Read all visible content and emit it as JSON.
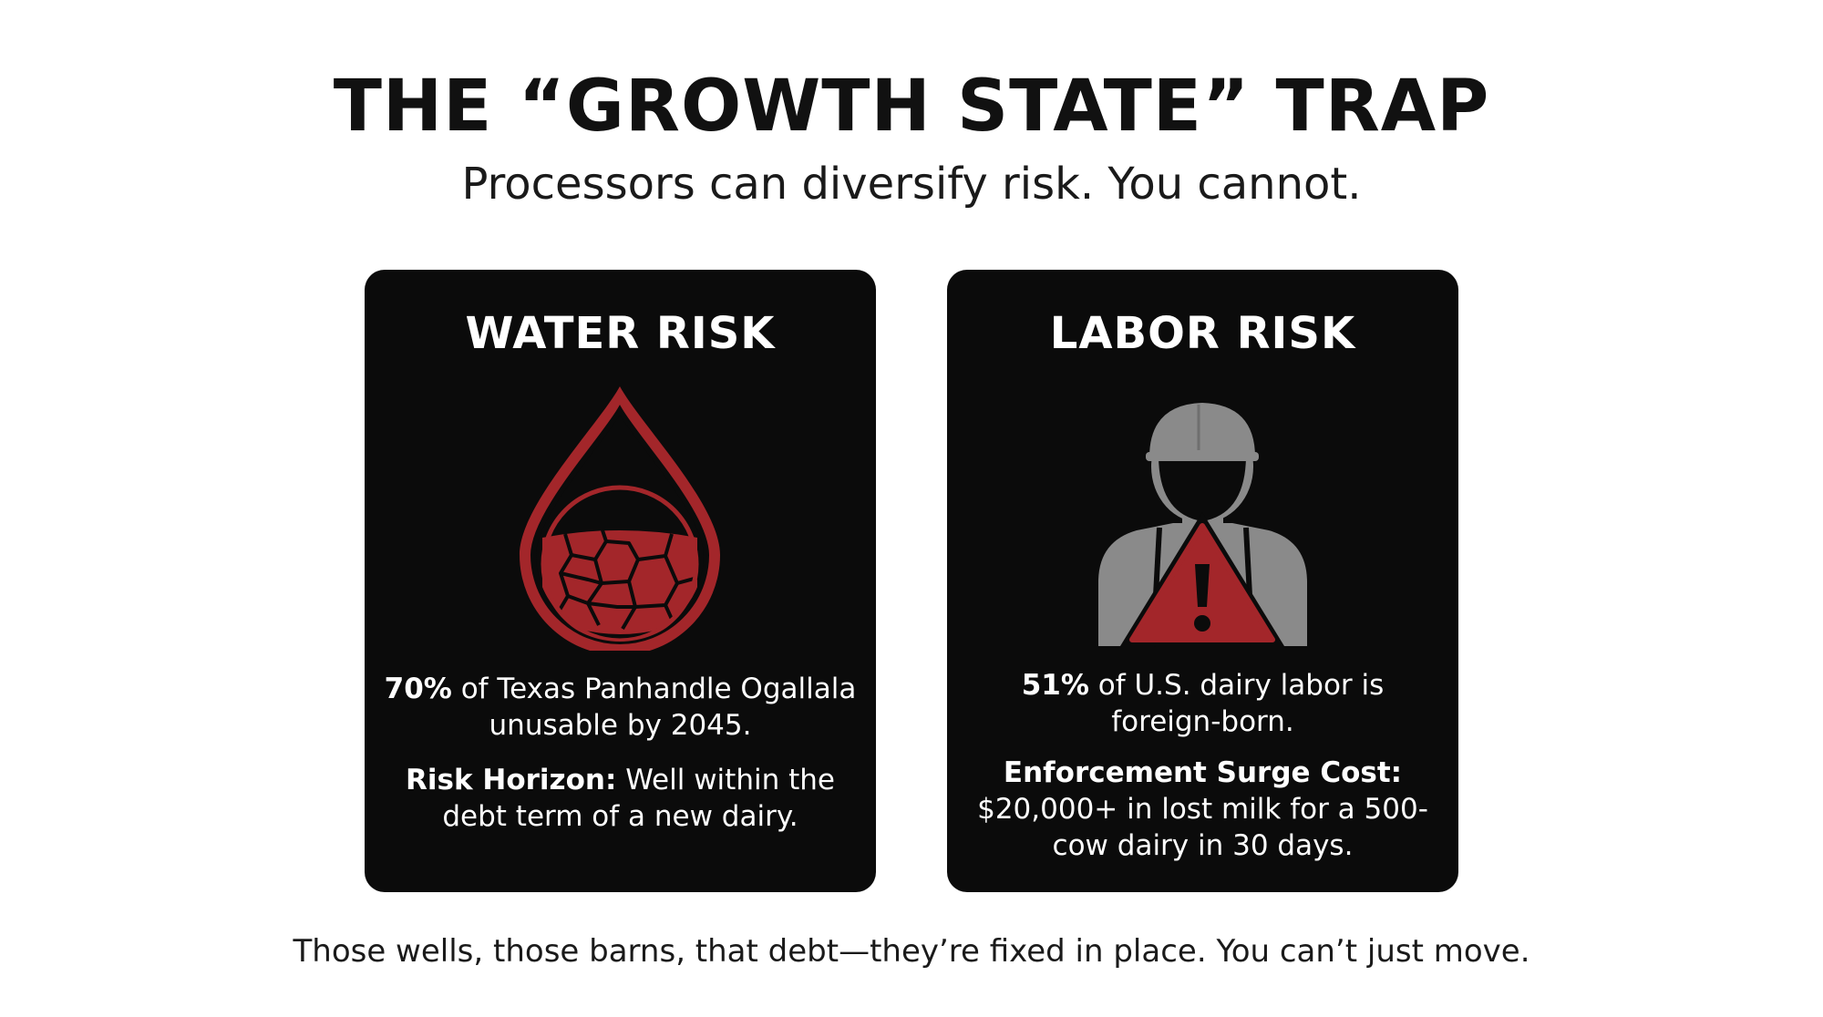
{
  "title": "THE “GROWTH STATE” TRAP",
  "subtitle": "Processors can diversify risk. You cannot.",
  "colors": {
    "accent_red": "#a3262a",
    "card_bg": "#0b0b0b",
    "icon_gray": "#8a8a8a"
  },
  "cards": [
    {
      "title": "WATER RISK",
      "icon": "cracked-water-drop-icon",
      "stat_value": "70%",
      "stat_text": " of Texas Panhandle Ogallala unusable by 2045.",
      "detail_label": "Risk Horizon:",
      "detail_text": " Well within the debt term of a new dairy."
    },
    {
      "title": "LABOR RISK",
      "icon": "worker-warning-icon",
      "stat_value": "51%",
      "stat_text": " of U.S. dairy labor is foreign-born.",
      "detail_label": "Enforcement Surge Cost:",
      "detail_text": " $20,000+ in lost milk for a 500-cow dairy in 30 days."
    }
  ],
  "footer": "Those wells, those barns, that debt—they’re fixed in place. You can’t just move."
}
